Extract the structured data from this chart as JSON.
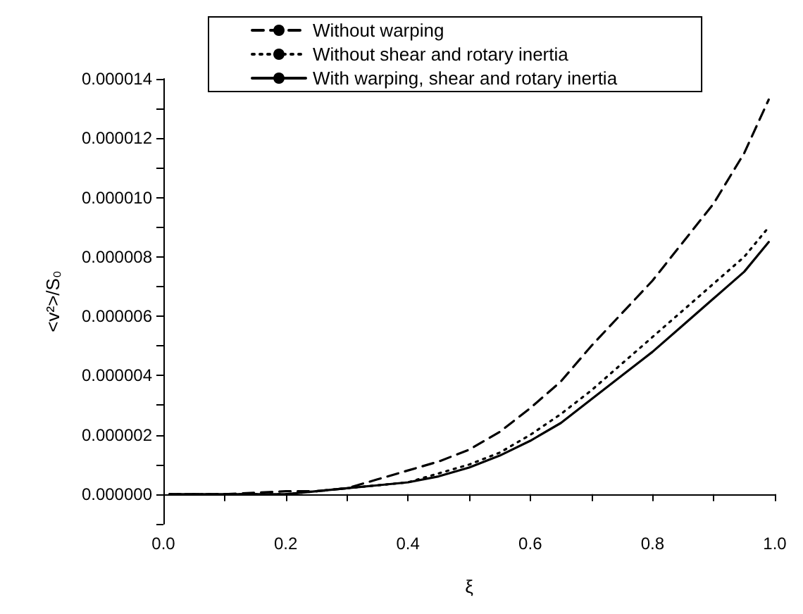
{
  "chart_data": {
    "type": "line",
    "xlabel": "ξ",
    "ylabel": "<v²>/S₀",
    "xlim": [
      0,
      1
    ],
    "xticks": [
      {
        "value": 0,
        "label": "0.0"
      },
      {
        "value": 0.1,
        "label": null
      },
      {
        "value": 0.2,
        "label": "0.2"
      },
      {
        "value": 0.3,
        "label": null
      },
      {
        "value": 0.4,
        "label": "0.4"
      },
      {
        "value": 0.5,
        "label": null
      },
      {
        "value": 0.6,
        "label": "0.6"
      },
      {
        "value": 0.7,
        "label": null
      },
      {
        "value": 0.8,
        "label": "0.8"
      },
      {
        "value": 0.9,
        "label": null
      },
      {
        "value": 1,
        "label": "1.0"
      }
    ],
    "ylim": [
      -1e-06,
      1.4e-05
    ],
    "yticks": [
      {
        "value": -1e-06,
        "label": null
      },
      {
        "value": 0,
        "label": "0.000000"
      },
      {
        "value": 1e-06,
        "label": null
      },
      {
        "value": 2e-06,
        "label": "0.000002"
      },
      {
        "value": 3e-06,
        "label": null
      },
      {
        "value": 4e-06,
        "label": "0.000004"
      },
      {
        "value": 5e-06,
        "label": null
      },
      {
        "value": 6e-06,
        "label": "0.000006"
      },
      {
        "value": 7e-06,
        "label": null
      },
      {
        "value": 8e-06,
        "label": "0.000008"
      },
      {
        "value": 9e-06,
        "label": null
      },
      {
        "value": 1e-05,
        "label": "0.000010"
      },
      {
        "value": 1.1e-05,
        "label": null
      },
      {
        "value": 1.2e-05,
        "label": "0.000012"
      },
      {
        "value": 1.3e-05,
        "label": null
      },
      {
        "value": 1.4e-05,
        "label": "0.000014"
      }
    ],
    "grid": false,
    "legend": "top",
    "marker": "none",
    "x": [
      0.01,
      0.1,
      0.2,
      0.25,
      0.3,
      0.35,
      0.4,
      0.45,
      0.5,
      0.55,
      0.6,
      0.65,
      0.7,
      0.75,
      0.8,
      0.85,
      0.9,
      0.95,
      0.99
    ],
    "series": [
      {
        "name": "Without warping",
        "color": "#000000",
        "line_style": "dashed",
        "values": [
          0,
          0,
          1e-07,
          1e-07,
          2e-07,
          5e-07,
          8e-07,
          1.1e-06,
          1.5e-06,
          2.1e-06,
          2.9e-06,
          3.8e-06,
          5e-06,
          6.1e-06,
          7.2e-06,
          8.5e-06,
          9.8e-06,
          1.15e-05,
          1.33e-05
        ]
      },
      {
        "name": "Without shear and rotary inertia",
        "color": "#000000",
        "line_style": "dotted",
        "values": [
          0,
          0,
          0,
          1e-07,
          2e-07,
          3e-07,
          4e-07,
          7e-07,
          1e-06,
          1.4e-06,
          2e-06,
          2.7e-06,
          3.5e-06,
          4.4e-06,
          5.3e-06,
          6.2e-06,
          7.1e-06,
          8e-06,
          9e-06
        ]
      },
      {
        "name": "With warping, shear and rotary inertia",
        "color": "#000000",
        "line_style": "solid",
        "values": [
          0,
          0,
          0,
          1e-07,
          2e-07,
          3e-07,
          4e-07,
          6e-07,
          9e-07,
          1.3e-06,
          1.8e-06,
          2.4e-06,
          3.2e-06,
          4e-06,
          4.8e-06,
          5.7e-06,
          6.6e-06,
          7.5e-06,
          8.5e-06
        ]
      }
    ]
  }
}
